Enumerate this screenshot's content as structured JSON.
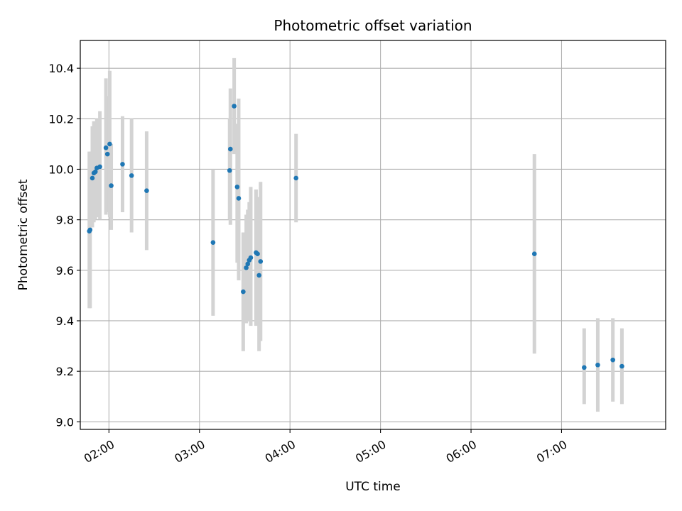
{
  "chart_data": {
    "type": "scatter",
    "title": "Photometric offset variation",
    "xlabel": "UTC time",
    "ylabel": "Photometric offset",
    "xlim": [
      "01:41",
      "08:09"
    ],
    "ylim": [
      8.97,
      10.51
    ],
    "grid": true,
    "point_color": "#1f77b4",
    "errorbar_color": "#d3d3d3",
    "x_ticks": [
      "02:00",
      "03:00",
      "04:00",
      "05:00",
      "06:00",
      "07:00"
    ],
    "y_ticks": [
      "9.0",
      "9.2",
      "9.4",
      "9.6",
      "9.8",
      "10.0",
      "10.2",
      "10.4"
    ],
    "points": [
      {
        "x": "01:47:00",
        "y": 9.755,
        "ylo": 9.45,
        "yhi": 10.07
      },
      {
        "x": "01:47:30",
        "y": 9.76,
        "ylo": 9.45,
        "yhi": 10.07
      },
      {
        "x": "01:49:00",
        "y": 9.965,
        "ylo": 9.77,
        "yhi": 10.17
      },
      {
        "x": "01:50:00",
        "y": 9.985,
        "ylo": 9.79,
        "yhi": 10.19
      },
      {
        "x": "01:51:00",
        "y": 9.99,
        "ylo": 9.8,
        "yhi": 10.19
      },
      {
        "x": "01:52:00",
        "y": 10.005,
        "ylo": 9.81,
        "yhi": 10.2
      },
      {
        "x": "01:54:00",
        "y": 10.01,
        "ylo": 9.8,
        "yhi": 10.23
      },
      {
        "x": "01:58:00",
        "y": 10.085,
        "ylo": 9.82,
        "yhi": 10.36
      },
      {
        "x": "01:59:00",
        "y": 10.06,
        "ylo": 9.83,
        "yhi": 10.29
      },
      {
        "x": "02:00:30",
        "y": 10.1,
        "ylo": 9.81,
        "yhi": 10.39
      },
      {
        "x": "02:01:30",
        "y": 9.935,
        "ylo": 9.76,
        "yhi": 10.1
      },
      {
        "x": "02:09:00",
        "y": 10.02,
        "ylo": 9.83,
        "yhi": 10.21
      },
      {
        "x": "02:15:00",
        "y": 9.975,
        "ylo": 9.75,
        "yhi": 10.2
      },
      {
        "x": "02:25:00",
        "y": 9.915,
        "ylo": 9.68,
        "yhi": 10.15
      },
      {
        "x": "03:09:00",
        "y": 9.71,
        "ylo": 9.42,
        "yhi": 10.0
      },
      {
        "x": "03:20:00",
        "y": 9.995,
        "ylo": 9.8,
        "yhi": 10.2
      },
      {
        "x": "03:20:30",
        "y": 10.08,
        "ylo": 9.78,
        "yhi": 10.32
      },
      {
        "x": "03:23:00",
        "y": 10.25,
        "ylo": 10.06,
        "yhi": 10.44
      },
      {
        "x": "03:25:00",
        "y": 9.93,
        "ylo": 9.63,
        "yhi": 10.18
      },
      {
        "x": "03:26:00",
        "y": 9.885,
        "ylo": 9.56,
        "yhi": 10.28
      },
      {
        "x": "03:29:00",
        "y": 9.515,
        "ylo": 9.28,
        "yhi": 9.75
      },
      {
        "x": "03:31:00",
        "y": 9.61,
        "ylo": 9.39,
        "yhi": 9.82
      },
      {
        "x": "03:32:00",
        "y": 9.625,
        "ylo": 9.4,
        "yhi": 9.84
      },
      {
        "x": "03:33:00",
        "y": 9.64,
        "ylo": 9.41,
        "yhi": 9.87
      },
      {
        "x": "03:34:00",
        "y": 9.65,
        "ylo": 9.38,
        "yhi": 9.93
      },
      {
        "x": "03:37:30",
        "y": 9.67,
        "ylo": 9.38,
        "yhi": 9.92
      },
      {
        "x": "03:38:30",
        "y": 9.665,
        "ylo": 9.39,
        "yhi": 9.89
      },
      {
        "x": "03:39:30",
        "y": 9.58,
        "ylo": 9.28,
        "yhi": 9.89
      },
      {
        "x": "03:40:30",
        "y": 9.635,
        "ylo": 9.32,
        "yhi": 9.95
      },
      {
        "x": "04:04:00",
        "y": 9.965,
        "ylo": 9.79,
        "yhi": 10.14
      },
      {
        "x": "06:42:00",
        "y": 9.665,
        "ylo": 9.27,
        "yhi": 10.06
      },
      {
        "x": "07:15:00",
        "y": 9.215,
        "ylo": 9.07,
        "yhi": 9.37
      },
      {
        "x": "07:24:00",
        "y": 9.225,
        "ylo": 9.04,
        "yhi": 9.41
      },
      {
        "x": "07:34:00",
        "y": 9.245,
        "ylo": 9.08,
        "yhi": 9.41
      },
      {
        "x": "07:40:00",
        "y": 9.22,
        "ylo": 9.07,
        "yhi": 9.37
      }
    ]
  }
}
